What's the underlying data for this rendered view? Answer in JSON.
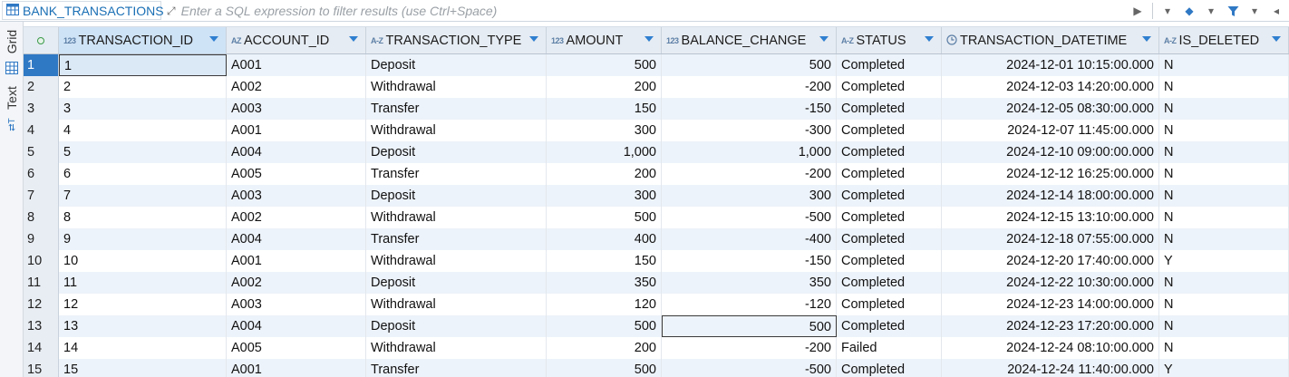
{
  "table_name": "BANK_TRANSACTIONS",
  "filter": {
    "placeholder": "Enter a SQL expression to filter results (use Ctrl+Space)"
  },
  "side_tabs": {
    "grid": "Grid",
    "text": "Text"
  },
  "columns": [
    {
      "label": "TRANSACTION_ID",
      "type_icon": "123"
    },
    {
      "label": "ACCOUNT_ID",
      "type_icon": "AZ"
    },
    {
      "label": "TRANSACTION_TYPE",
      "type_icon": "A-Z"
    },
    {
      "label": "AMOUNT",
      "type_icon": "123"
    },
    {
      "label": "BALANCE_CHANGE",
      "type_icon": "123"
    },
    {
      "label": "STATUS",
      "type_icon": "A-Z"
    },
    {
      "label": "TRANSACTION_DATETIME",
      "type_icon": "clock-icon"
    },
    {
      "label": "IS_DELETED",
      "type_icon": "A-Z"
    }
  ],
  "rows": [
    {
      "n": "1",
      "cells": [
        "1",
        "A001",
        "Deposit",
        "500",
        "500",
        "Completed",
        "2024-12-01 10:15:00.000",
        "N"
      ]
    },
    {
      "n": "2",
      "cells": [
        "2",
        "A002",
        "Withdrawal",
        "200",
        "-200",
        "Completed",
        "2024-12-03 14:20:00.000",
        "N"
      ]
    },
    {
      "n": "3",
      "cells": [
        "3",
        "A003",
        "Transfer",
        "150",
        "-150",
        "Completed",
        "2024-12-05 08:30:00.000",
        "N"
      ]
    },
    {
      "n": "4",
      "cells": [
        "4",
        "A001",
        "Withdrawal",
        "300",
        "-300",
        "Completed",
        "2024-12-07 11:45:00.000",
        "N"
      ]
    },
    {
      "n": "5",
      "cells": [
        "5",
        "A004",
        "Deposit",
        "1,000",
        "1,000",
        "Completed",
        "2024-12-10 09:00:00.000",
        "N"
      ]
    },
    {
      "n": "6",
      "cells": [
        "6",
        "A005",
        "Transfer",
        "200",
        "-200",
        "Completed",
        "2024-12-12 16:25:00.000",
        "N"
      ]
    },
    {
      "n": "7",
      "cells": [
        "7",
        "A003",
        "Deposit",
        "300",
        "300",
        "Completed",
        "2024-12-14 18:00:00.000",
        "N"
      ]
    },
    {
      "n": "8",
      "cells": [
        "8",
        "A002",
        "Withdrawal",
        "500",
        "-500",
        "Completed",
        "2024-12-15 13:10:00.000",
        "N"
      ]
    },
    {
      "n": "9",
      "cells": [
        "9",
        "A004",
        "Transfer",
        "400",
        "-400",
        "Completed",
        "2024-12-18 07:55:00.000",
        "N"
      ]
    },
    {
      "n": "10",
      "cells": [
        "10",
        "A001",
        "Withdrawal",
        "150",
        "-150",
        "Completed",
        "2024-12-20 17:40:00.000",
        "Y"
      ]
    },
    {
      "n": "11",
      "cells": [
        "11",
        "A002",
        "Deposit",
        "350",
        "350",
        "Completed",
        "2024-12-22 10:30:00.000",
        "N"
      ]
    },
    {
      "n": "12",
      "cells": [
        "12",
        "A003",
        "Withdrawal",
        "120",
        "-120",
        "Completed",
        "2024-12-23 14:00:00.000",
        "N"
      ]
    },
    {
      "n": "13",
      "cells": [
        "13",
        "A004",
        "Deposit",
        "500",
        "500",
        "Completed",
        "2024-12-23 17:20:00.000",
        "N"
      ]
    },
    {
      "n": "14",
      "cells": [
        "14",
        "A005",
        "Withdrawal",
        "200",
        "-200",
        "Failed",
        "2024-12-24 08:10:00.000",
        "N"
      ]
    },
    {
      "n": "15",
      "cells": [
        "15",
        "A001",
        "Transfer",
        "500",
        "-500",
        "Completed",
        "2024-12-24 11:40:00.000",
        "Y"
      ]
    }
  ],
  "colors": {
    "accent": "#2f78c4",
    "header_bg": "#e6ecf3",
    "alt_row": "#edf3fa"
  }
}
